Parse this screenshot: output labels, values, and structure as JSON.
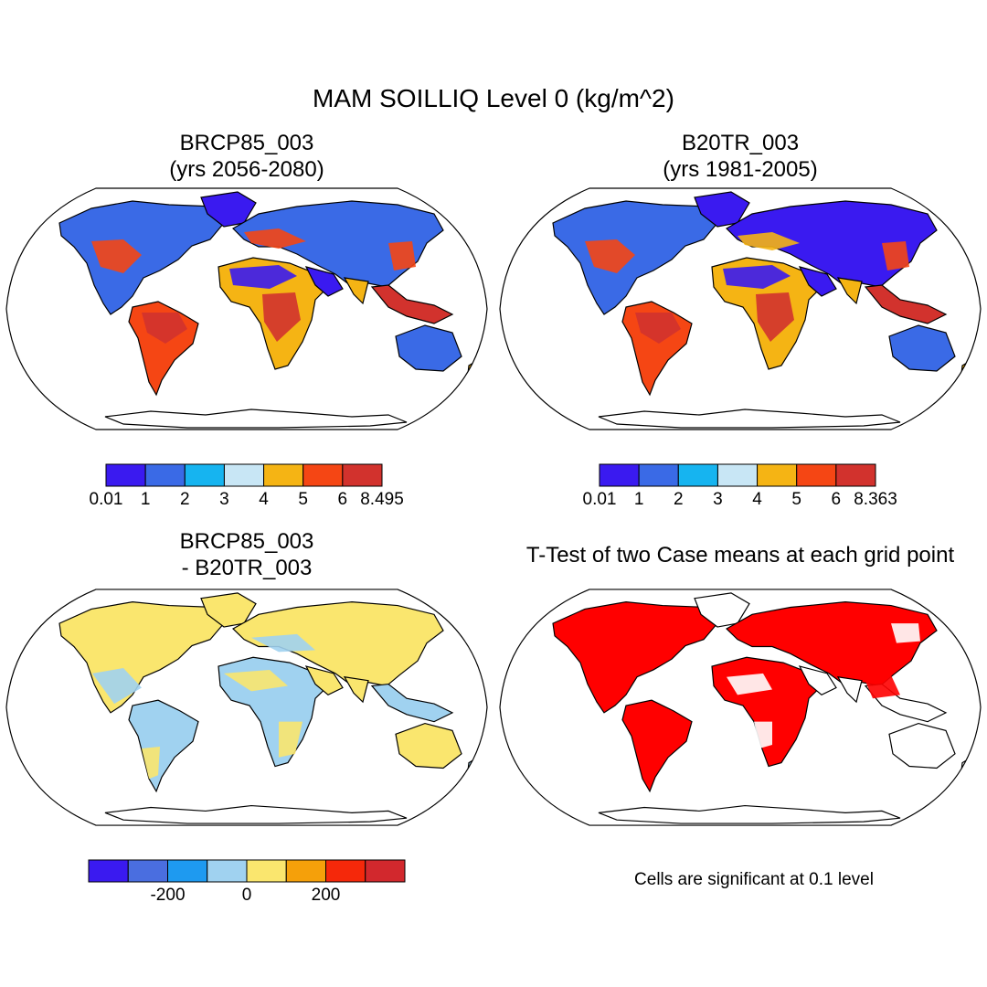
{
  "title": "MAM SOILLIQ Level 0 (kg/m^2)",
  "panels": [
    {
      "id": "p1",
      "title_line1": "BRCP85_003",
      "title_line2": "(yrs 2056-2080)"
    },
    {
      "id": "p2",
      "title_line1": "B20TR_003",
      "title_line2": "(yrs 1981-2005)"
    },
    {
      "id": "p3",
      "title_line1": "BRCP85_003",
      "title_line2": "- B20TR_003"
    },
    {
      "id": "p4",
      "title_line1": "T-Test of two Case means at each grid point"
    }
  ],
  "colorbars": {
    "cb1": {
      "colors": [
        "#3a1af0",
        "#3a6ae6",
        "#16b4f0",
        "#c8e6f5",
        "#f5b414",
        "#f54614",
        "#d2322d"
      ],
      "labels": [
        "0.01",
        "1",
        "2",
        "3",
        "4",
        "5",
        "6",
        "8.495"
      ]
    },
    "cb2": {
      "colors": [
        "#3a1af0",
        "#3a6ae6",
        "#16b4f0",
        "#c8e6f5",
        "#f5b414",
        "#f54614",
        "#d2322d"
      ],
      "labels": [
        "0.01",
        "1",
        "2",
        "3",
        "4",
        "5",
        "6",
        "8.363"
      ]
    },
    "cb3": {
      "colors": [
        "#3a1af0",
        "#4a6ee0",
        "#1e9af0",
        "#a0d2f0",
        "#fae66e",
        "#f5a00a",
        "#f5280a",
        "#d2282d"
      ],
      "labels": [
        "-200",
        "0",
        "200"
      ]
    }
  },
  "significance_color": "#ff0000",
  "significance_note": "Cells are significant at 0.1 level"
}
